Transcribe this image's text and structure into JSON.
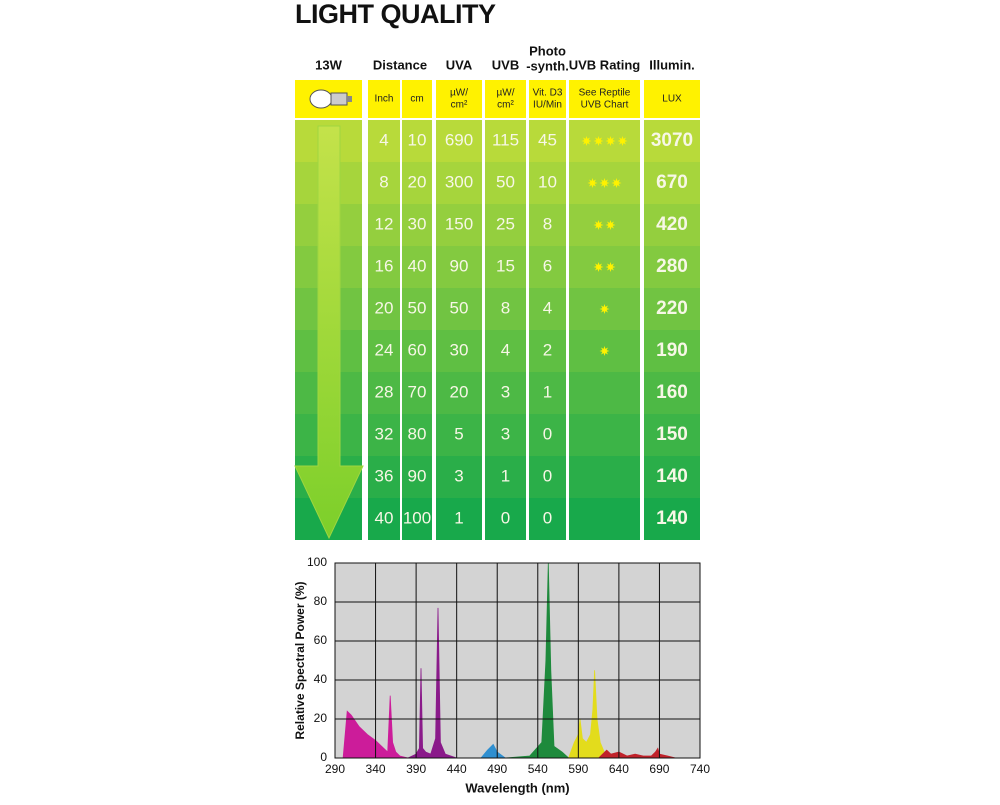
{
  "title": "LIGHT QUALITY",
  "table": {
    "header": [
      [
        "13W"
      ],
      [
        "Distance"
      ],
      [
        "UVA"
      ],
      [
        "UVB"
      ],
      [
        "Photo",
        "-synth."
      ],
      [
        "UVB Rating"
      ],
      [
        "Illumin."
      ]
    ],
    "units": [
      [
        "Inch"
      ],
      [
        "cm"
      ],
      [
        "µW/",
        "cm²"
      ],
      [
        "µW/",
        "cm²"
      ],
      [
        "Vit. D3",
        "IU/Min"
      ],
      [
        "See Reptile",
        "UVB Chart"
      ],
      [
        "LUX"
      ]
    ],
    "rows": [
      [
        4,
        10,
        690,
        115,
        45,
        4,
        3070
      ],
      [
        8,
        20,
        300,
        50,
        10,
        3,
        670
      ],
      [
        12,
        30,
        150,
        25,
        8,
        2,
        420
      ],
      [
        16,
        40,
        90,
        15,
        6,
        2,
        280
      ],
      [
        20,
        50,
        50,
        8,
        4,
        1,
        220
      ],
      [
        24,
        60,
        30,
        4,
        2,
        1,
        190
      ],
      [
        28,
        70,
        20,
        3,
        1,
        0,
        160
      ],
      [
        32,
        80,
        5,
        3,
        0,
        0,
        150
      ],
      [
        36,
        90,
        3,
        1,
        0,
        0,
        140
      ],
      [
        40,
        100,
        1,
        0,
        0,
        0,
        140
      ]
    ]
  },
  "chart_data": {
    "type": "area",
    "xlabel": "Wavelength (nm)",
    "ylabel": "Relative Spectral Power (%)",
    "xlim": [
      290,
      740
    ],
    "ylim": [
      0,
      100
    ],
    "xticks": [
      290,
      340,
      390,
      440,
      490,
      540,
      590,
      640,
      690,
      740
    ],
    "yticks": [
      0,
      20,
      40,
      60,
      80,
      100
    ],
    "grid": true,
    "background": "#d3d3d3",
    "series": [
      {
        "color": "#cc1c9a",
        "x": [
          300,
          305,
          310,
          320,
          330,
          340,
          350,
          355,
          358,
          361,
          365,
          370,
          380
        ],
        "values": [
          0,
          24,
          22,
          16,
          12,
          9,
          5,
          3,
          32,
          8,
          3,
          1,
          0
        ]
      },
      {
        "color": "#8a1a8a",
        "x": [
          380,
          390,
          394,
          396,
          398,
          402,
          408,
          414,
          417,
          420,
          426,
          440
        ],
        "values": [
          0,
          2,
          5,
          46,
          5,
          3,
          2,
          10,
          77,
          8,
          2,
          0
        ]
      },
      {
        "color": "#2f8fd0",
        "x": [
          470,
          478,
          485,
          490,
          500
        ],
        "values": [
          0,
          4,
          7,
          3,
          0
        ]
      },
      {
        "color": "#1e8a3c",
        "x": [
          500,
          530,
          545,
          550,
          553,
          556,
          560,
          570,
          578
        ],
        "values": [
          0,
          1,
          8,
          50,
          100,
          45,
          6,
          3,
          0
        ]
      },
      {
        "color": "#e3dc1c",
        "x": [
          578,
          585,
          590,
          592,
          595,
          600,
          605,
          608,
          610,
          613,
          617,
          625
        ],
        "values": [
          0,
          8,
          12,
          20,
          10,
          8,
          12,
          25,
          45,
          20,
          8,
          0
        ]
      },
      {
        "color": "#c0222a",
        "x": [
          615,
          625,
          630,
          640,
          650,
          660,
          670,
          680,
          685,
          688,
          690,
          700,
          710
        ],
        "values": [
          0,
          4,
          2,
          3,
          1,
          2,
          1,
          1,
          3,
          5,
          2,
          1,
          0
        ]
      }
    ]
  }
}
